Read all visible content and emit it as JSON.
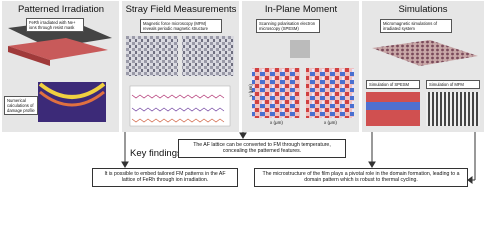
{
  "panels": [
    {
      "title": "Patterned Irradiation",
      "notes": [
        "FeRh irradiated with Ne+ ions through resist mask",
        "Numerical calculations of damage profile"
      ]
    },
    {
      "title": "Stray Field Measurements",
      "notes": [
        "Magnetic force microscopy (MFM) reveals periodic magnetic structure"
      ]
    },
    {
      "title": "In-Plane Moment",
      "notes": [
        "Scanning polarisation electron microscopy (SPESM)"
      ],
      "axis_labels": [
        "y (μm)",
        "x (μm)"
      ]
    },
    {
      "title": "Simulations",
      "notes": [
        "Micromagnetic simulations of irradiated system",
        "Simulation of SPESM",
        "Simulation of MFM"
      ]
    }
  ],
  "key_findings": {
    "title": "Key findings",
    "items": [
      "The AF lattice can be converted to FM through temperature, concealing the patterned features.",
      "It is possible to embed tailored FM patterns in the AF lattice of FeRh through ion irradiation.",
      "The microstructure of the film plays a pivotal role in the domain formation, leading to a domain pattern which is robust to thermal cycling."
    ]
  }
}
